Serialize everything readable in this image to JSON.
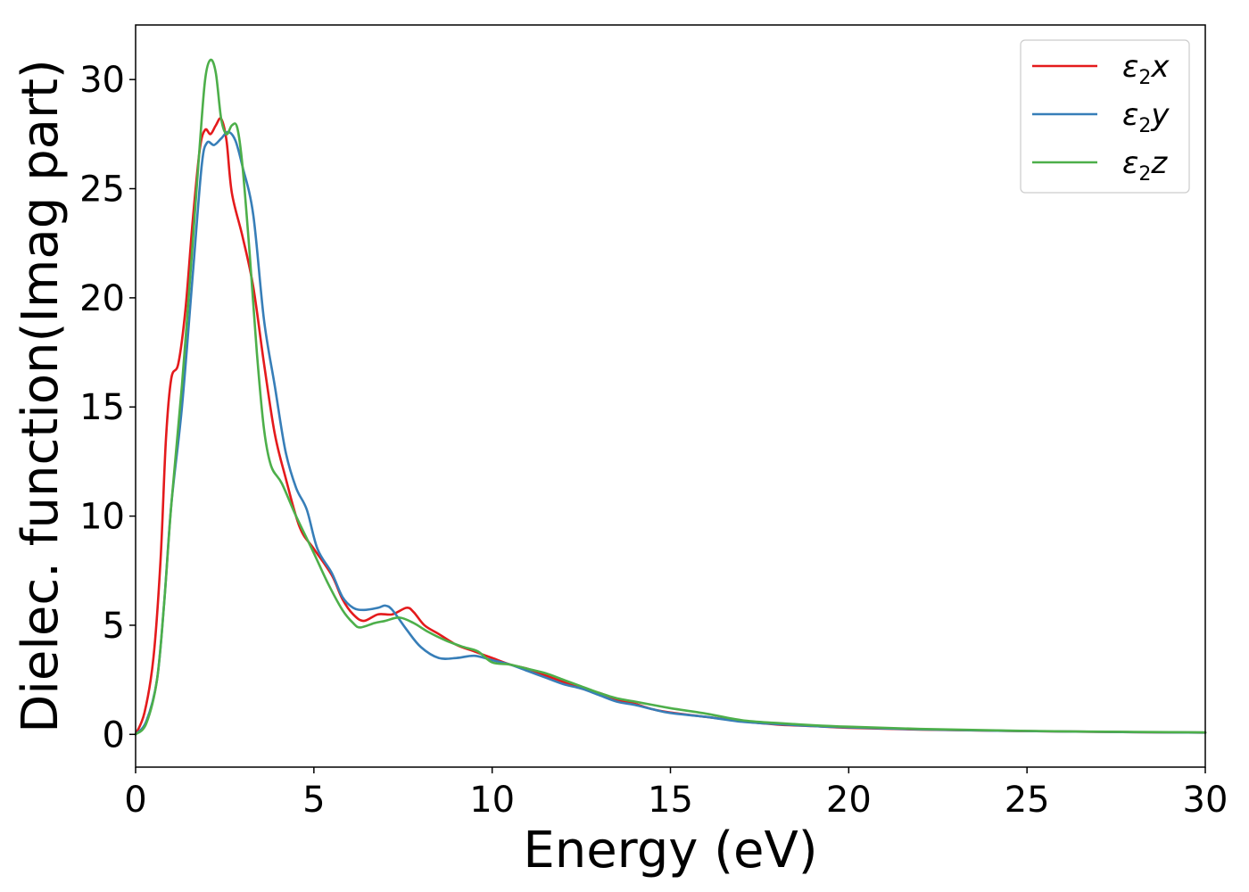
{
  "chart_data": {
    "type": "line",
    "xlabel": "Energy (eV)",
    "ylabel": "Dielec. function(Imag part)",
    "xlim": [
      0,
      30
    ],
    "ylim": [
      -1.5,
      32.5
    ],
    "xticks": [
      0,
      5,
      10,
      15,
      20,
      25,
      30
    ],
    "yticks": [
      0,
      5,
      10,
      15,
      20,
      25,
      30
    ],
    "xtick_labels": [
      "0",
      "5",
      "10",
      "15",
      "20",
      "25",
      "30"
    ],
    "ytick_labels": [
      "0",
      "5",
      "10",
      "15",
      "20",
      "25",
      "30"
    ],
    "grid": false,
    "legend_position": "top-right",
    "series": [
      {
        "name": "ε2x",
        "legend_base": "ε",
        "legend_sub": "2",
        "legend_var": "x",
        "color": "#e41a1c",
        "points": [
          [
            0,
            0
          ],
          [
            0.25,
            1
          ],
          [
            0.5,
            3.5
          ],
          [
            0.7,
            8
          ],
          [
            0.85,
            13.5
          ],
          [
            1.0,
            16.3
          ],
          [
            1.2,
            17
          ],
          [
            1.4,
            19.5
          ],
          [
            1.6,
            23.5
          ],
          [
            1.8,
            26.8
          ],
          [
            1.95,
            27.7
          ],
          [
            2.1,
            27.5
          ],
          [
            2.25,
            27.9
          ],
          [
            2.4,
            28.2
          ],
          [
            2.55,
            27.2
          ],
          [
            2.7,
            24.8
          ],
          [
            3.0,
            22.8
          ],
          [
            3.3,
            20.5
          ],
          [
            3.6,
            17
          ],
          [
            3.9,
            13.8
          ],
          [
            4.2,
            11.8
          ],
          [
            4.6,
            9.5
          ],
          [
            5.0,
            8.5
          ],
          [
            5.5,
            7.3
          ],
          [
            5.8,
            6.2
          ],
          [
            6.1,
            5.5
          ],
          [
            6.4,
            5.2
          ],
          [
            6.8,
            5.5
          ],
          [
            7.2,
            5.5
          ],
          [
            7.6,
            5.8
          ],
          [
            7.8,
            5.6
          ],
          [
            8.1,
            5
          ],
          [
            8.5,
            4.6
          ],
          [
            9.0,
            4.1
          ],
          [
            9.5,
            3.8
          ],
          [
            10.0,
            3.5
          ],
          [
            10.5,
            3.2
          ],
          [
            11,
            3.0
          ],
          [
            11.5,
            2.7
          ],
          [
            12,
            2.4
          ],
          [
            12.5,
            2.1
          ],
          [
            13,
            1.9
          ],
          [
            13.5,
            1.6
          ],
          [
            14,
            1.4
          ],
          [
            14.5,
            1.15
          ],
          [
            15,
            1.0
          ],
          [
            16,
            0.8
          ],
          [
            17,
            0.6
          ],
          [
            18,
            0.45
          ],
          [
            19,
            0.38
          ],
          [
            20,
            0.3
          ],
          [
            22,
            0.22
          ],
          [
            25,
            0.15
          ],
          [
            28,
            0.1
          ],
          [
            30,
            0.08
          ]
        ]
      },
      {
        "name": "ε2y",
        "legend_base": "ε",
        "legend_sub": "2",
        "legend_var": "y",
        "color": "#377eb8",
        "points": [
          [
            0,
            0
          ],
          [
            0.3,
            0.6
          ],
          [
            0.6,
            2.5
          ],
          [
            0.8,
            6
          ],
          [
            1.0,
            10.5
          ],
          [
            1.3,
            15
          ],
          [
            1.6,
            21
          ],
          [
            1.85,
            26
          ],
          [
            2.0,
            27.1
          ],
          [
            2.2,
            27.0
          ],
          [
            2.4,
            27.3
          ],
          [
            2.6,
            27.6
          ],
          [
            2.8,
            27.2
          ],
          [
            3.0,
            26
          ],
          [
            3.3,
            23.8
          ],
          [
            3.6,
            19
          ],
          [
            3.9,
            16
          ],
          [
            4.2,
            13
          ],
          [
            4.5,
            11.3
          ],
          [
            4.8,
            10.3
          ],
          [
            5.1,
            8.5
          ],
          [
            5.5,
            7.4
          ],
          [
            5.8,
            6.3
          ],
          [
            6.1,
            5.8
          ],
          [
            6.4,
            5.7
          ],
          [
            6.8,
            5.8
          ],
          [
            7.0,
            5.9
          ],
          [
            7.2,
            5.7
          ],
          [
            7.6,
            4.8
          ],
          [
            8.0,
            4.0
          ],
          [
            8.5,
            3.5
          ],
          [
            9.0,
            3.5
          ],
          [
            9.5,
            3.6
          ],
          [
            10.0,
            3.4
          ],
          [
            10.5,
            3.2
          ],
          [
            11,
            2.9
          ],
          [
            11.5,
            2.6
          ],
          [
            12,
            2.3
          ],
          [
            12.5,
            2.1
          ],
          [
            13,
            1.8
          ],
          [
            13.5,
            1.5
          ],
          [
            14,
            1.35
          ],
          [
            14.5,
            1.15
          ],
          [
            15,
            0.98
          ],
          [
            16,
            0.8
          ],
          [
            17,
            0.58
          ],
          [
            18,
            0.47
          ],
          [
            19,
            0.38
          ],
          [
            20,
            0.32
          ],
          [
            22,
            0.23
          ],
          [
            25,
            0.15
          ],
          [
            28,
            0.1
          ],
          [
            30,
            0.08
          ]
        ]
      },
      {
        "name": "ε2z",
        "legend_base": "ε",
        "legend_sub": "2",
        "legend_var": "z",
        "color": "#4daf4a",
        "points": [
          [
            0,
            0
          ],
          [
            0.3,
            0.5
          ],
          [
            0.6,
            2.5
          ],
          [
            0.8,
            6
          ],
          [
            1.0,
            10.5
          ],
          [
            1.3,
            16
          ],
          [
            1.6,
            22.5
          ],
          [
            1.8,
            27
          ],
          [
            1.95,
            30
          ],
          [
            2.1,
            30.9
          ],
          [
            2.25,
            30.3
          ],
          [
            2.4,
            28.2
          ],
          [
            2.55,
            27.5
          ],
          [
            2.7,
            27.9
          ],
          [
            2.85,
            27.8
          ],
          [
            3.0,
            26
          ],
          [
            3.2,
            22
          ],
          [
            3.4,
            17.5
          ],
          [
            3.6,
            14
          ],
          [
            3.8,
            12.3
          ],
          [
            4.1,
            11.5
          ],
          [
            4.5,
            10
          ],
          [
            5.0,
            8.3
          ],
          [
            5.4,
            6.9
          ],
          [
            5.8,
            5.7
          ],
          [
            6.1,
            5.1
          ],
          [
            6.3,
            4.9
          ],
          [
            6.7,
            5.1
          ],
          [
            7.0,
            5.2
          ],
          [
            7.4,
            5.35
          ],
          [
            7.8,
            5.1
          ],
          [
            8.2,
            4.7
          ],
          [
            8.7,
            4.3
          ],
          [
            9.2,
            4.0
          ],
          [
            9.6,
            3.8
          ],
          [
            10,
            3.3
          ],
          [
            10.5,
            3.2
          ],
          [
            11,
            3.0
          ],
          [
            11.5,
            2.8
          ],
          [
            12,
            2.5
          ],
          [
            12.5,
            2.2
          ],
          [
            13,
            1.9
          ],
          [
            13.5,
            1.65
          ],
          [
            14,
            1.5
          ],
          [
            14.5,
            1.35
          ],
          [
            15,
            1.2
          ],
          [
            16,
            0.95
          ],
          [
            17,
            0.65
          ],
          [
            18,
            0.52
          ],
          [
            19,
            0.42
          ],
          [
            20,
            0.35
          ],
          [
            22,
            0.25
          ],
          [
            25,
            0.16
          ],
          [
            28,
            0.11
          ],
          [
            30,
            0.09
          ]
        ]
      }
    ]
  }
}
